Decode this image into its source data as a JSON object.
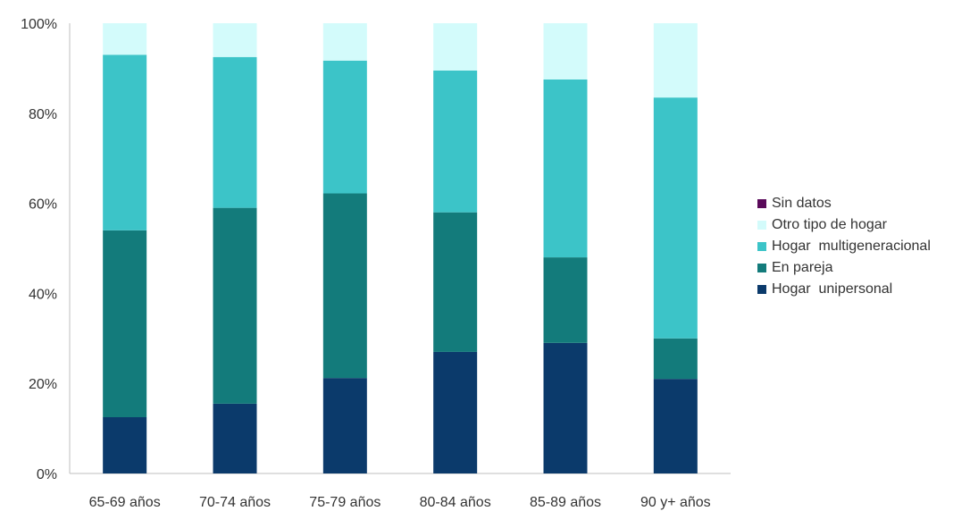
{
  "chart_data": {
    "type": "bar",
    "stacked": true,
    "categories": [
      "65-69 años",
      "70-74 años",
      "75-79 años",
      "80-84 años",
      "85-89 años",
      "90 y+ años"
    ],
    "series": [
      {
        "name": "Hogar  unipersonal",
        "color": "#0b3a6b",
        "values": [
          12.5,
          15.5,
          21.2,
          27,
          29,
          21
        ]
      },
      {
        "name": "En pareja",
        "color": "#137b7b",
        "values": [
          41.5,
          43.5,
          41,
          31,
          19,
          9
        ]
      },
      {
        "name": "Hogar  multigeneracional",
        "color": "#3cc4c8",
        "values": [
          39,
          33.5,
          29.5,
          31.5,
          39.5,
          53.5
        ]
      },
      {
        "name": "Otro tipo de hogar",
        "color": "#d3fbfb",
        "values": [
          7,
          7.5,
          8.3,
          10.5,
          12.5,
          16.5
        ]
      },
      {
        "name": "Sin datos",
        "color": "#5a0a5a",
        "values": [
          0,
          0,
          0,
          0,
          0,
          0
        ]
      }
    ],
    "legend_order": [
      "Sin datos",
      "Otro tipo de hogar",
      "Hogar  multigeneracional",
      "En pareja",
      "Hogar  unipersonal"
    ],
    "y_ticks": [
      "0%",
      "20%",
      "40%",
      "60%",
      "80%",
      "100%"
    ],
    "ylim": [
      0,
      100
    ],
    "grid": false,
    "legend_position": "right"
  }
}
